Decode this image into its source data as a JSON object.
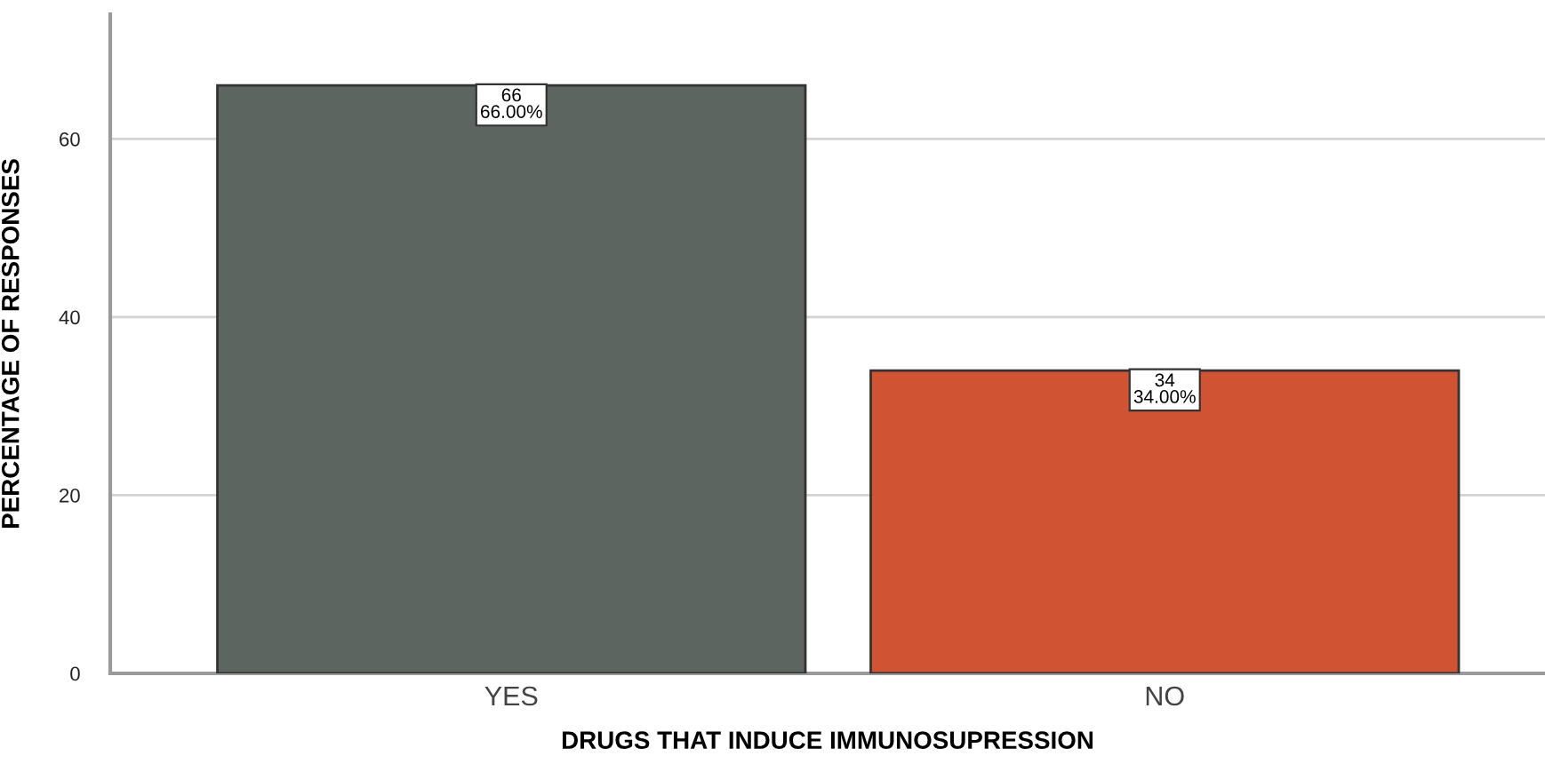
{
  "chart_data": {
    "type": "bar",
    "xlabel": "DRUGS THAT INDUCE IMMUNOSUPRESSION",
    "ylabel": "PERCENTAGE OF RESPONSES",
    "categories": [
      "YES",
      "NO"
    ],
    "values": [
      66,
      34
    ],
    "colors": [
      "#5c6560",
      "#d05434"
    ],
    "value_labels": [
      "66\n66.00%",
      "34\n34.00%"
    ],
    "ylim": [
      0,
      74
    ],
    "yticks": [
      0,
      20,
      40,
      60
    ],
    "grid": "y",
    "legend": false
  }
}
